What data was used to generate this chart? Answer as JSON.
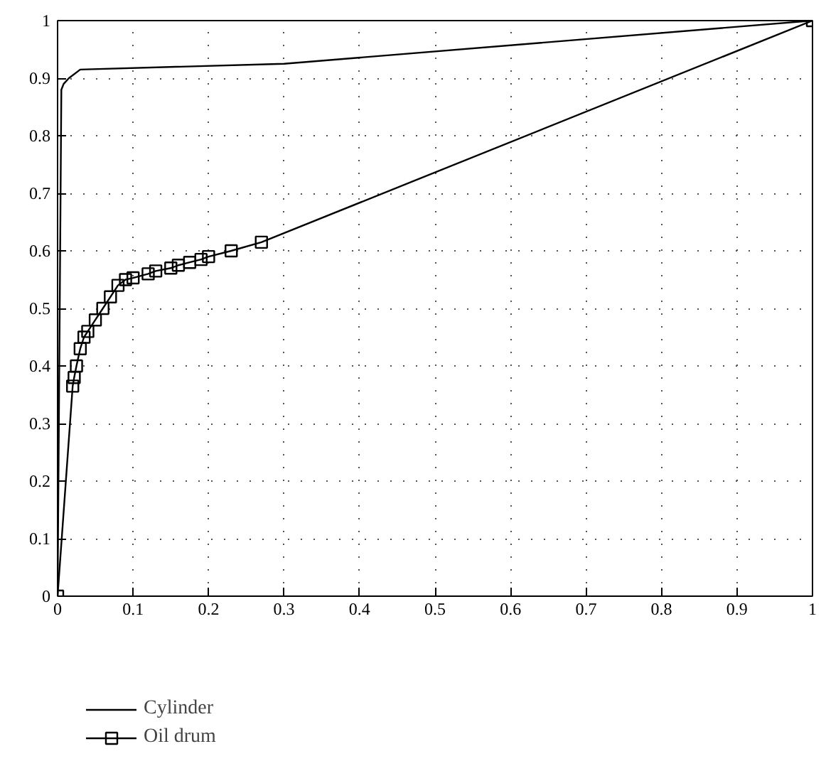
{
  "chart_data": {
    "type": "line",
    "xlim": [
      0,
      1
    ],
    "ylim": [
      0,
      1
    ],
    "xticks": [
      0,
      0.1,
      0.2,
      0.3,
      0.4,
      0.5,
      0.6,
      0.7,
      0.8,
      0.9,
      1
    ],
    "yticks": [
      0,
      0.1,
      0.2,
      0.3,
      0.4,
      0.5,
      0.6,
      0.7,
      0.8,
      0.9,
      1
    ],
    "grid": true,
    "legend": "bottom",
    "series": [
      {
        "name": "Cylinder",
        "color": "#000000",
        "marker": "none",
        "x": [
          0,
          0.005,
          0.008,
          0.015,
          0.03,
          0.3,
          1
        ],
        "values": [
          0,
          0.88,
          0.89,
          0.9,
          0.915,
          0.925,
          1
        ]
      },
      {
        "name": "Oil drum",
        "color": "#000000",
        "marker": "square",
        "x": [
          0,
          0.02,
          0.022,
          0.025,
          0.03,
          0.035,
          0.04,
          0.05,
          0.06,
          0.07,
          0.08,
          0.09,
          0.1,
          0.12,
          0.13,
          0.15,
          0.16,
          0.175,
          0.19,
          0.2,
          0.23,
          0.27,
          1
        ],
        "values": [
          0,
          0.365,
          0.38,
          0.4,
          0.43,
          0.45,
          0.46,
          0.48,
          0.5,
          0.52,
          0.54,
          0.55,
          0.553,
          0.56,
          0.565,
          0.57,
          0.575,
          0.58,
          0.585,
          0.59,
          0.6,
          0.615,
          1
        ]
      }
    ]
  }
}
